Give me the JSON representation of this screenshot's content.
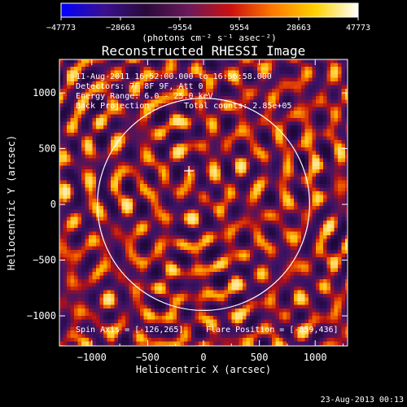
{
  "chart_data": {
    "type": "heatmap",
    "title": "Reconstructed RHESSI Image",
    "xlabel": "Heliocentric X (arcsec)",
    "ylabel": "Heliocentric Y (arcsec)",
    "xlim": [
      -1290,
      1290
    ],
    "ylim": [
      -1270,
      1300
    ],
    "xticks": [
      -1000,
      -500,
      0,
      500,
      1000
    ],
    "yticks": [
      1000,
      500,
      0,
      -500,
      -1000
    ],
    "xtick_labels": [
      "−1000",
      "−500",
      "0",
      "500",
      "1000"
    ],
    "ytick_labels": [
      "1000",
      "500",
      "0",
      "−500",
      "−1000"
    ],
    "colorbar": {
      "min": -47773,
      "max": 47773,
      "tick_values": [
        -47773,
        -28663,
        -9554,
        9554,
        28663,
        47773
      ],
      "tick_labels": [
        "−47773",
        "−28663",
        "−9554",
        "9554",
        "28663",
        "47773"
      ],
      "units_label": "(photons cm⁻² s⁻¹ asec⁻²)"
    },
    "annotations": {
      "time_range": "11-Aug-2011 16:52:00.000 to 16:56:58.000",
      "detectors": "Detectors: 7F 8F 9F, Att 0",
      "energy_range": "Energy Range: 6.0 - 25.0 keV",
      "method": "Back Projection",
      "total_counts": "Total counts: 2.85e+05",
      "spin_axis": "Spin Axis = [-126,265]",
      "flare_position": "Flare Position = [-859,436]"
    },
    "solar_limb": {
      "center": [
        0,
        0
      ],
      "radius_arcsec": 950
    },
    "marker_position": [
      -130,
      300
    ],
    "grid": false,
    "legend": "none"
  },
  "footer": {
    "date": "23-Aug-2013 00:13"
  },
  "colors": {
    "background": "#000000",
    "foreground": "#ffffff",
    "colormap": [
      "#0000ff",
      "#3a1090",
      "#2a0a3a",
      "#6a1a5a",
      "#cc1010",
      "#ff7a00",
      "#ffd200",
      "#ffffff"
    ]
  }
}
